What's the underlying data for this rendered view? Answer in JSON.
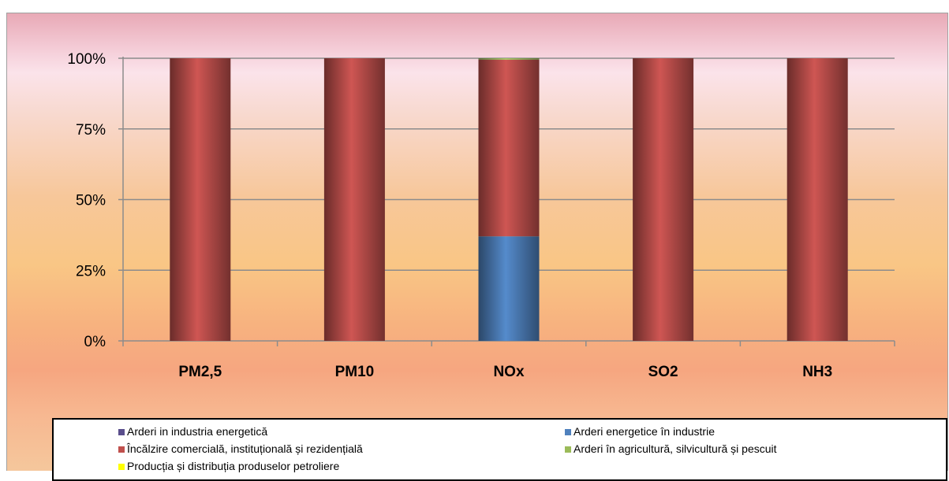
{
  "chart_data": {
    "type": "bar",
    "stacked": true,
    "categories": [
      "PM2,5",
      "PM10",
      "NOx",
      "SO2",
      "NH3"
    ],
    "y_ticks": [
      "0%",
      "25%",
      "50%",
      "75%",
      "100%"
    ],
    "ylim": [
      0,
      100
    ],
    "grid": true,
    "legend_position": "bottom",
    "series": [
      {
        "name": "Arderi in industria energetică",
        "color": "#5a4e8c",
        "values": [
          0,
          0,
          0,
          0,
          0
        ]
      },
      {
        "name": "Arderi energetice în industrie",
        "color": "#4f81bd",
        "values": [
          0,
          0,
          37,
          0,
          0
        ]
      },
      {
        "name": "Încălzire comercială,  instituțională și rezidențială",
        "color": "#c0504d",
        "values": [
          100,
          100,
          62.5,
          100,
          100
        ]
      },
      {
        "name": "Arderi în agricultură, silvicultură și pescuit",
        "color": "#9bbb59",
        "values": [
          0,
          0,
          0.5,
          0,
          0
        ]
      },
      {
        "name": "Producția și distribuția produselor petroliere",
        "color": "#ffff00",
        "values": [
          0,
          0,
          0,
          0,
          0
        ]
      }
    ]
  }
}
